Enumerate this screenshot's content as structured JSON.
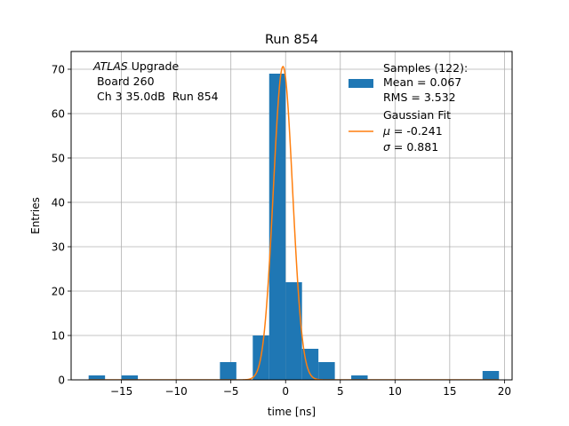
{
  "chart_data": {
    "type": "bar",
    "title": "Run 854",
    "xlabel": "time [ns]",
    "ylabel": "Entries",
    "xlim": [
      -19.6,
      20.7
    ],
    "ylim": [
      0,
      74
    ],
    "grid": true,
    "x_ticks": [
      -15,
      -10,
      -5,
      0,
      5,
      10,
      15,
      20
    ],
    "x_tick_labels": [
      "−15",
      "−10",
      "−5",
      "0",
      "5",
      "10",
      "15",
      "20"
    ],
    "y_ticks": [
      0,
      10,
      20,
      30,
      40,
      50,
      60,
      70
    ],
    "y_tick_labels": [
      "0",
      "10",
      "20",
      "30",
      "40",
      "50",
      "60",
      "70"
    ],
    "histogram": {
      "color": "#1f77b4",
      "bin_edges": [
        -18.0,
        -16.5,
        -15.0,
        -13.5,
        -12.0,
        -10.5,
        -9.0,
        -7.5,
        -6.0,
        -4.5,
        -3.0,
        -1.5,
        0.0,
        1.5,
        3.0,
        4.5,
        6.0,
        7.5,
        9.0,
        10.5,
        12.0,
        13.5,
        15.0,
        16.5,
        18.0,
        19.5
      ],
      "counts": [
        1,
        0,
        1,
        0,
        0,
        0,
        0,
        0,
        4,
        0,
        10,
        69,
        22,
        7,
        4,
        0,
        1,
        0,
        0,
        0,
        0,
        0,
        0,
        0,
        2
      ]
    },
    "fit": {
      "color": "#ff7f0e",
      "amplitude": 70.6,
      "mu": -0.241,
      "sigma": 0.881,
      "x_range": [
        -18.0,
        19.5
      ]
    },
    "annotation": {
      "line1_italic": "ATLAS",
      "line1_rest": " Upgrade",
      "line2": " Board 260",
      "line3": " Ch 3 35.0dB  Run 854"
    },
    "legend": {
      "position": "top-right",
      "samples_line1": "Samples (122):",
      "samples_line2": "Mean = 0.067",
      "samples_line3": "RMS = 3.532",
      "fit_line1": "Gaussian Fit",
      "fit_mu_symbol": "μ",
      "fit_mu_rest": " = -0.241",
      "fit_sigma_symbol": "σ",
      "fit_sigma_rest": " = 0.881"
    }
  }
}
